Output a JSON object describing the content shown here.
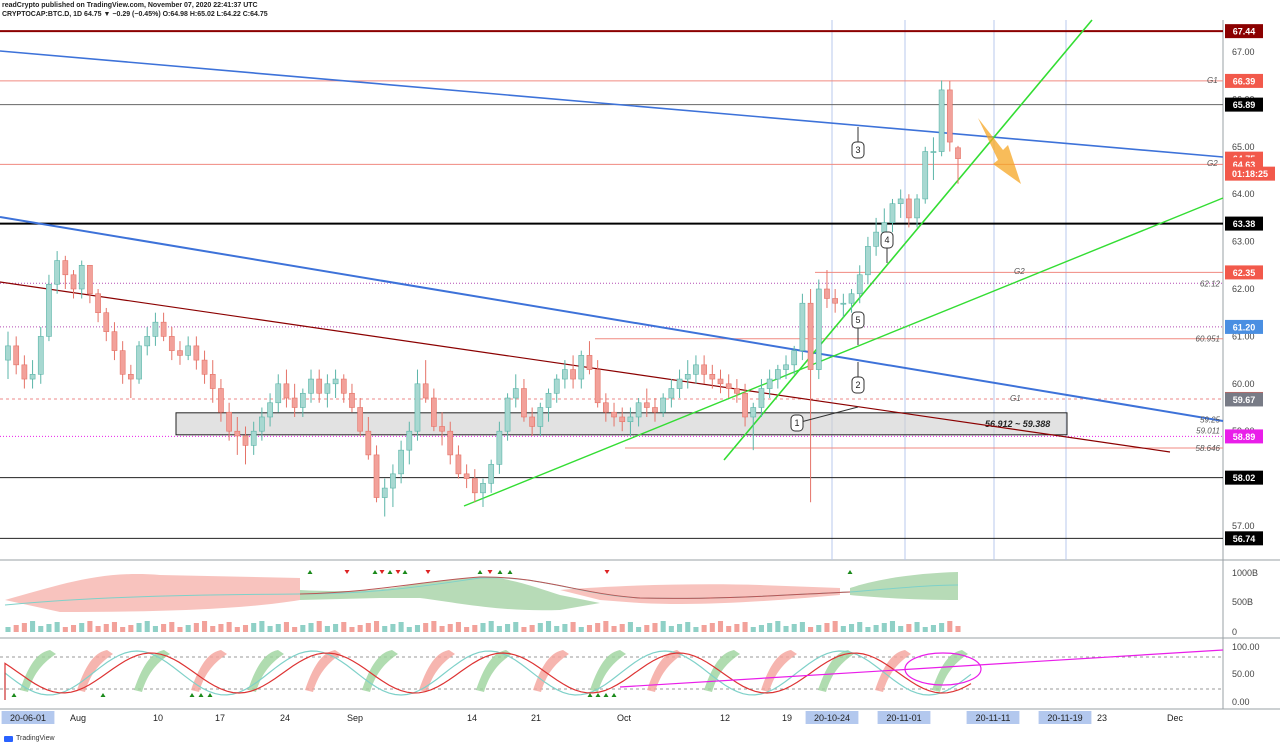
{
  "header": {
    "line1": "readCrypto published on TradingView.com, November 07, 2020 22:41:37 UTC",
    "line2": "CRYPTOCAP:BTC.D, 1D 64.75 ▼ −0.29 (−0.45%) O:64.98 H:65.02 L:64.22 C:64.75"
  },
  "footer": {
    "brand": "TradingView"
  },
  "chart_data": [
    {
      "type": "candlestick",
      "title": "CRYPTOCAP:BTC.D, 1D",
      "ylim": [
        56.5,
        67.7
      ],
      "y_ticks": [
        57,
        58,
        59,
        60,
        61,
        62,
        63,
        64,
        65,
        66,
        67
      ],
      "x_tick_labels": [
        "20-06-01",
        "Aug",
        "10",
        "17",
        "24",
        "Sep",
        "14",
        "21",
        "Oct",
        "12",
        "19",
        "20-10-24",
        "20-11-01",
        "20-11-11",
        "20-11-19",
        "23",
        "Dec"
      ],
      "current_price": "64.75",
      "countdown": "01:18:25",
      "price_labels": [
        {
          "value": 67.44,
          "text": "67.44",
          "color": "#8b0000"
        },
        {
          "value": 66.39,
          "text": "66.39",
          "color": "#f2594b"
        },
        {
          "value": 65.89,
          "text": "65.89",
          "color": "#000000"
        },
        {
          "value": 64.75,
          "text": "64.75",
          "color": "#f2594b"
        },
        {
          "value": 64.63,
          "text": "64.63",
          "color": "#f2594b"
        },
        {
          "value": 63.38,
          "text": "63.38",
          "color": "#000000"
        },
        {
          "value": 62.35,
          "text": "62.35",
          "color": "#f2594b"
        },
        {
          "value": 61.2,
          "text": "61.20",
          "color": "#4a8fe2"
        },
        {
          "value": 59.68,
          "text": "59.68",
          "color": "#f2594b"
        },
        {
          "value": 59.67,
          "text": "59.67",
          "color": "#787b86"
        },
        {
          "value": 58.89,
          "text": "58.89",
          "color": "#e91ee9"
        },
        {
          "value": 58.02,
          "text": "58.02",
          "color": "#000000"
        },
        {
          "value": 56.74,
          "text": "56.74",
          "color": "#000000"
        }
      ],
      "plain_labels": [
        {
          "value": 62.12,
          "text": "62.12"
        },
        {
          "value": 60.951,
          "text": "60.951"
        },
        {
          "value": 59.25,
          "text": "59.25"
        },
        {
          "value": 59.011,
          "text": "59.011"
        },
        {
          "value": 58.646,
          "text": "58.646"
        }
      ],
      "annotations": {
        "box_range": "56.912 ~ 59.388",
        "g1_top": "G1",
        "g2_top": "G2",
        "g2_mid": "G2",
        "g1_low": "G1",
        "callouts": [
          "1",
          "2",
          "3",
          "4",
          "5"
        ]
      },
      "candles_ohlc": [
        [
          60.5,
          61.1,
          60.1,
          60.8
        ],
        [
          60.8,
          61.0,
          60.2,
          60.4
        ],
        [
          60.4,
          60.6,
          59.9,
          60.1
        ],
        [
          60.1,
          60.5,
          59.9,
          60.2
        ],
        [
          60.2,
          61.2,
          60.0,
          61.0
        ],
        [
          61.0,
          62.3,
          60.9,
          62.1
        ],
        [
          62.1,
          62.8,
          61.9,
          62.6
        ],
        [
          62.6,
          62.7,
          62.0,
          62.3
        ],
        [
          62.3,
          62.4,
          61.8,
          62.0
        ],
        [
          62.0,
          62.6,
          61.8,
          62.5
        ],
        [
          62.5,
          62.5,
          61.7,
          61.9
        ],
        [
          61.9,
          62.0,
          61.3,
          61.5
        ],
        [
          61.5,
          61.6,
          60.9,
          61.1
        ],
        [
          61.1,
          61.3,
          60.5,
          60.7
        ],
        [
          60.7,
          60.9,
          60.0,
          60.2
        ],
        [
          60.2,
          60.4,
          59.7,
          60.1
        ],
        [
          60.1,
          60.9,
          60.0,
          60.8
        ],
        [
          60.8,
          61.2,
          60.6,
          61.0
        ],
        [
          61.0,
          61.5,
          60.8,
          61.3
        ],
        [
          61.3,
          61.5,
          60.9,
          61.0
        ],
        [
          61.0,
          61.2,
          60.5,
          60.7
        ],
        [
          60.7,
          60.9,
          60.4,
          60.6
        ],
        [
          60.6,
          61.0,
          60.5,
          60.8
        ],
        [
          60.8,
          61.0,
          60.3,
          60.5
        ],
        [
          60.5,
          60.7,
          60.0,
          60.2
        ],
        [
          60.2,
          60.5,
          59.6,
          59.9
        ],
        [
          59.9,
          60.1,
          59.2,
          59.4
        ],
        [
          59.4,
          59.6,
          58.8,
          59.0
        ],
        [
          59.0,
          59.3,
          58.5,
          58.9
        ],
        [
          58.9,
          59.1,
          58.3,
          58.7
        ],
        [
          58.7,
          59.2,
          58.5,
          59.0
        ],
        [
          59.0,
          59.5,
          58.8,
          59.3
        ],
        [
          59.3,
          59.8,
          59.1,
          59.6
        ],
        [
          59.6,
          60.2,
          59.4,
          60.0
        ],
        [
          60.0,
          60.3,
          59.5,
          59.7
        ],
        [
          59.7,
          60.0,
          59.3,
          59.5
        ],
        [
          59.5,
          59.9,
          59.3,
          59.8
        ],
        [
          59.8,
          60.3,
          59.6,
          60.1
        ],
        [
          60.1,
          60.3,
          59.6,
          59.8
        ],
        [
          59.8,
          60.2,
          59.5,
          60.0
        ],
        [
          60.0,
          60.3,
          59.7,
          60.1
        ],
        [
          60.1,
          60.2,
          59.6,
          59.8
        ],
        [
          59.8,
          60.0,
          59.4,
          59.5
        ],
        [
          59.5,
          59.7,
          58.9,
          59.0
        ],
        [
          59.0,
          59.3,
          58.4,
          58.5
        ],
        [
          58.5,
          58.7,
          57.5,
          57.6
        ],
        [
          57.6,
          58.0,
          57.2,
          57.8
        ],
        [
          57.8,
          58.3,
          57.4,
          58.1
        ],
        [
          58.1,
          58.8,
          57.9,
          58.6
        ],
        [
          58.6,
          59.2,
          58.3,
          59.0
        ],
        [
          59.0,
          60.3,
          58.8,
          60.0
        ],
        [
          60.0,
          60.5,
          59.6,
          59.7
        ],
        [
          59.7,
          59.9,
          59.0,
          59.1
        ],
        [
          59.1,
          59.4,
          58.7,
          59.0
        ],
        [
          59.0,
          59.2,
          58.3,
          58.5
        ],
        [
          58.5,
          58.7,
          58.0,
          58.1
        ],
        [
          58.1,
          58.3,
          57.8,
          58.0
        ],
        [
          58.0,
          58.2,
          57.5,
          57.7
        ],
        [
          57.7,
          58.0,
          57.4,
          57.9
        ],
        [
          57.9,
          58.4,
          57.7,
          58.3
        ],
        [
          58.3,
          59.2,
          58.1,
          59.0
        ],
        [
          59.0,
          59.8,
          58.8,
          59.7
        ],
        [
          59.7,
          60.2,
          59.5,
          59.9
        ],
        [
          59.9,
          60.1,
          59.2,
          59.3
        ],
        [
          59.3,
          59.5,
          58.9,
          59.1
        ],
        [
          59.1,
          59.6,
          58.9,
          59.5
        ],
        [
          59.5,
          59.9,
          59.2,
          59.8
        ],
        [
          59.8,
          60.2,
          59.6,
          60.1
        ],
        [
          60.1,
          60.5,
          59.9,
          60.3
        ],
        [
          60.3,
          60.6,
          59.9,
          60.1
        ],
        [
          60.1,
          60.7,
          59.9,
          60.6
        ],
        [
          60.6,
          60.9,
          60.2,
          60.3
        ],
        [
          60.3,
          60.5,
          59.5,
          59.6
        ],
        [
          59.6,
          59.8,
          59.2,
          59.4
        ],
        [
          59.4,
          59.6,
          59.1,
          59.3
        ],
        [
          59.3,
          59.5,
          59.0,
          59.2
        ],
        [
          59.2,
          59.5,
          58.9,
          59.3
        ],
        [
          59.3,
          59.7,
          59.1,
          59.6
        ],
        [
          59.6,
          59.9,
          59.3,
          59.5
        ],
        [
          59.5,
          59.7,
          59.2,
          59.4
        ],
        [
          59.4,
          59.8,
          59.3,
          59.7
        ],
        [
          59.7,
          60.1,
          59.5,
          59.9
        ],
        [
          59.9,
          60.3,
          59.7,
          60.1
        ],
        [
          60.1,
          60.5,
          59.9,
          60.2
        ],
        [
          60.2,
          60.6,
          60.0,
          60.4
        ],
        [
          60.4,
          60.6,
          60.0,
          60.2
        ],
        [
          60.2,
          60.4,
          59.9,
          60.1
        ],
        [
          60.1,
          60.3,
          59.8,
          60.0
        ],
        [
          60.0,
          60.2,
          59.7,
          59.9
        ],
        [
          59.9,
          60.1,
          59.6,
          59.8
        ],
        [
          59.8,
          60.0,
          59.1,
          59.3
        ],
        [
          59.3,
          59.6,
          58.6,
          59.5
        ],
        [
          59.5,
          60.1,
          59.3,
          59.9
        ],
        [
          59.9,
          60.3,
          59.7,
          60.1
        ],
        [
          60.1,
          60.4,
          59.9,
          60.3
        ],
        [
          60.3,
          60.6,
          60.1,
          60.4
        ],
        [
          60.4,
          60.8,
          60.2,
          60.7
        ],
        [
          60.7,
          61.9,
          60.5,
          61.7
        ],
        [
          61.7,
          62.0,
          57.5,
          60.3
        ],
        [
          60.3,
          62.2,
          60.1,
          62.0
        ],
        [
          62.0,
          62.4,
          61.6,
          61.8
        ],
        [
          61.8,
          62.0,
          61.5,
          61.7
        ],
        [
          61.7,
          61.9,
          61.4,
          61.7
        ],
        [
          61.7,
          62.0,
          61.5,
          61.9
        ],
        [
          61.9,
          62.5,
          61.7,
          62.3
        ],
        [
          62.3,
          63.1,
          62.1,
          62.9
        ],
        [
          62.9,
          63.5,
          62.7,
          63.2
        ],
        [
          63.2,
          63.7,
          62.9,
          63.4
        ],
        [
          63.4,
          63.9,
          63.2,
          63.8
        ],
        [
          63.8,
          64.1,
          63.5,
          63.9
        ],
        [
          63.9,
          64.0,
          63.3,
          63.5
        ],
        [
          63.5,
          64.0,
          63.3,
          63.9
        ],
        [
          63.9,
          65.0,
          63.8,
          64.9
        ],
        [
          64.9,
          65.2,
          64.3,
          64.9
        ],
        [
          64.9,
          66.4,
          64.8,
          66.2
        ],
        [
          66.2,
          66.39,
          64.9,
          65.1
        ],
        [
          64.98,
          65.02,
          64.22,
          64.75
        ]
      ],
      "volume_panel": {
        "axis_labels": [
          "1000B",
          "500B",
          "0"
        ]
      },
      "oscillator_panel": {
        "axis_labels": [
          "100.00",
          "50.00",
          "0.00"
        ]
      }
    }
  ],
  "colors": {
    "up": "#a7d8d1",
    "down": "#f2a19a",
    "blue_line": "#3d72d9",
    "green_line": "#33dd33",
    "dark_red": "#8b0000",
    "magenta": "#e91ee9",
    "orange": "#f5a623",
    "highlight_tag": "#b3c8ee"
  }
}
